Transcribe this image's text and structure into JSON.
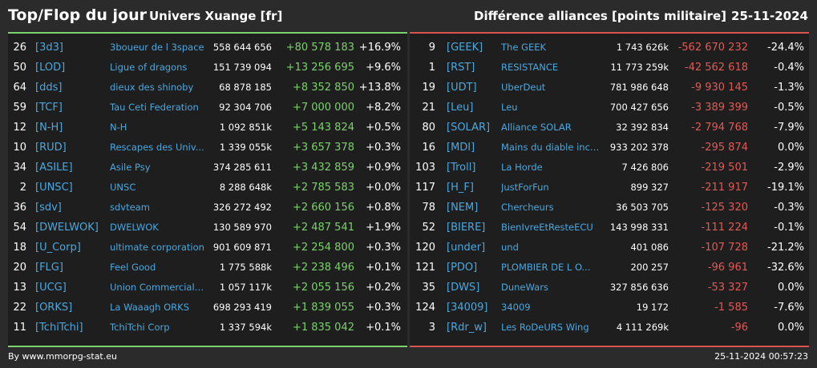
{
  "header": {
    "title": "Top/Flop du jour",
    "universe": "Univers Xuange [fr]",
    "diff_title": "Différence alliances [points militaire]",
    "date": "25-11-2024"
  },
  "colors": {
    "positive": "#7bd16b",
    "negative": "#e05a55",
    "tag": "#4aa8e0",
    "background": "#2b2b2b",
    "panel": "#1e1e1e"
  },
  "top": [
    {
      "rank": "26",
      "tag": "[3d3]",
      "name": "3boueur de l 3space",
      "points": "558 644 656",
      "diff": "+80 578 183",
      "pct": "+16.9%"
    },
    {
      "rank": "50",
      "tag": "[LOD]",
      "name": "Ligue of dragons",
      "points": "151 739 094",
      "diff": "+13 256 695",
      "pct": "+9.6%"
    },
    {
      "rank": "64",
      "tag": "[dds]",
      "name": "dieux des shinoby",
      "points": "68 878 185",
      "diff": "+8 352 850",
      "pct": "+13.8%"
    },
    {
      "rank": "59",
      "tag": "[TCF]",
      "name": "Tau Ceti Federation",
      "points": "92 304 706",
      "diff": "+7 000 000",
      "pct": "+8.2%"
    },
    {
      "rank": "12",
      "tag": "[N-H]",
      "name": "N-H",
      "points": "1 092 851k",
      "diff": "+5 143 824",
      "pct": "+0.5%"
    },
    {
      "rank": "10",
      "tag": "[RUD]",
      "name": "Rescapes des Univ...",
      "points": "1 339 055k",
      "diff": "+3 657 378",
      "pct": "+0.3%"
    },
    {
      "rank": "34",
      "tag": "[ASILE]",
      "name": "Asile Psy",
      "points": "374 285 611",
      "diff": "+3 432 859",
      "pct": "+0.9%"
    },
    {
      "rank": "2",
      "tag": "[UNSC]",
      "name": "UNSC",
      "points": "8 288 648k",
      "diff": "+2 785 583",
      "pct": "+0.0%"
    },
    {
      "rank": "36",
      "tag": "[sdv]",
      "name": "sdvteam",
      "points": "326 272 492",
      "diff": "+2 660 156",
      "pct": "+0.8%"
    },
    {
      "rank": "54",
      "tag": "[DWELWOK]",
      "name": "DWELWOK",
      "points": "130 589 970",
      "diff": "+2 487 541",
      "pct": "+1.9%"
    },
    {
      "rank": "18",
      "tag": "[U_Corp]",
      "name": "ultimate corporation",
      "points": "901 609 871",
      "diff": "+2 254 800",
      "pct": "+0.3%"
    },
    {
      "rank": "20",
      "tag": "[FLG]",
      "name": "Feel Good",
      "points": "1 775 588k",
      "diff": "+2 238 496",
      "pct": "+0.1%"
    },
    {
      "rank": "13",
      "tag": "[UCG]",
      "name": "Union Commerciale...",
      "points": "1 057 117k",
      "diff": "+2 055 156",
      "pct": "+0.2%"
    },
    {
      "rank": "22",
      "tag": "[ORKS]",
      "name": "La Waaagh ORKS",
      "points": "698 293 419",
      "diff": "+1 839 055",
      "pct": "+0.3%"
    },
    {
      "rank": "11",
      "tag": "[TchiTchi]",
      "name": "TchiTchi Corp",
      "points": "1 337 594k",
      "diff": "+1 835 042",
      "pct": "+0.1%"
    }
  ],
  "flop": [
    {
      "rank": "9",
      "tag": "[GEEK]",
      "name": "The GEEK",
      "points": "1 743 626k",
      "diff": "-562 670 232",
      "pct": "-24.4%"
    },
    {
      "rank": "1",
      "tag": "[RST]",
      "name": "RESISTANCE",
      "points": "11 773 259k",
      "diff": "-42 562 618",
      "pct": "-0.4%"
    },
    {
      "rank": "19",
      "tag": "[UDT]",
      "name": "UberDeut",
      "points": "781 986 648",
      "diff": "-9 930 145",
      "pct": "-1.3%"
    },
    {
      "rank": "21",
      "tag": "[Leu]",
      "name": "Leu",
      "points": "700 427 656",
      "diff": "-3 389 399",
      "pct": "-0.5%"
    },
    {
      "rank": "80",
      "tag": "[SOLAR]",
      "name": "Alliance SOLAR",
      "points": "32 392 834",
      "diff": "-2 794 768",
      "pct": "-7.9%"
    },
    {
      "rank": "16",
      "tag": "[MDI]",
      "name": "Mains du diable inco...",
      "points": "933 202 378",
      "diff": "-295 874",
      "pct": "0.0%"
    },
    {
      "rank": "103",
      "tag": "[Troll]",
      "name": "La Horde",
      "points": "7 426 806",
      "diff": "-219 501",
      "pct": "-2.9%"
    },
    {
      "rank": "117",
      "tag": "[H_F]",
      "name": "JustForFun",
      "points": "899 327",
      "diff": "-211 917",
      "pct": "-19.1%"
    },
    {
      "rank": "78",
      "tag": "[NEM]",
      "name": "Chercheurs",
      "points": "36 503 705",
      "diff": "-125 320",
      "pct": "-0.3%"
    },
    {
      "rank": "52",
      "tag": "[BIERE]",
      "name": "BienIvreEtResteECU",
      "points": "143 998 331",
      "diff": "-111 224",
      "pct": "-0.1%"
    },
    {
      "rank": "120",
      "tag": "[under]",
      "name": "und",
      "points": "401 086",
      "diff": "-107 728",
      "pct": "-21.2%"
    },
    {
      "rank": "121",
      "tag": "[PDO]",
      "name": "PLOMBIER DE L O...",
      "points": "200 257",
      "diff": "-96 961",
      "pct": "-32.6%"
    },
    {
      "rank": "35",
      "tag": "[DWS]",
      "name": "DuneWars",
      "points": "327 856 636",
      "diff": "-53 327",
      "pct": "0.0%"
    },
    {
      "rank": "124",
      "tag": "[34009]",
      "name": "34009",
      "points": "19 172",
      "diff": "-1 585",
      "pct": "-7.6%"
    },
    {
      "rank": "3",
      "tag": "[Rdr_w]",
      "name": "Les RoDeURS Wing",
      "points": "4 111 269k",
      "diff": "-96",
      "pct": "0.0%"
    }
  ],
  "footer": {
    "source": "By www.mmorpg-stat.eu",
    "timestamp": "25-11-2024 00:57:23"
  }
}
